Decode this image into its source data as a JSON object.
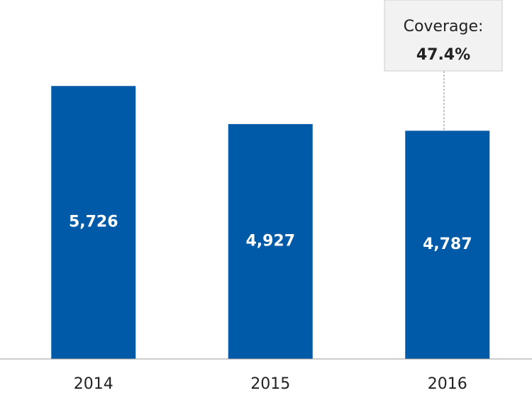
{
  "chart_data": {
    "type": "bar",
    "categories": [
      "2014",
      "2015",
      "2016"
    ],
    "values": [
      5726,
      4927,
      4787
    ],
    "value_labels": [
      "5,726",
      "4,927",
      "4,787"
    ],
    "color": "#005aa7",
    "ylim": [
      0,
      7500
    ],
    "annotation": {
      "title": "Coverage:",
      "text": "47.4%"
    }
  }
}
